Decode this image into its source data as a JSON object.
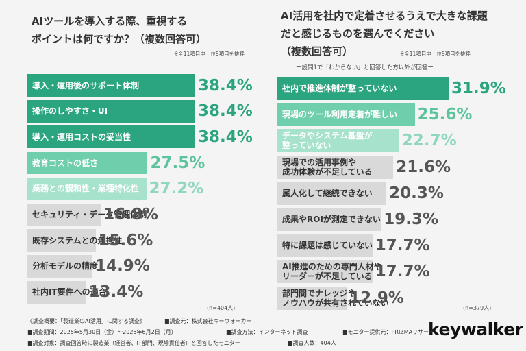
{
  "chart_data": [
    {
      "type": "bar",
      "orientation": "horizontal",
      "title": "AIツールを導入する際、重視する\nポイントは何ですか？（複数回答可）",
      "note": "※全11項目中上位9項目を抜粋",
      "sample": "(n=404人)",
      "categories": [
        "導入・運用後のサポート体制",
        "操作のしやすさ・UI",
        "導入・運用コストの妥当性",
        "教育コストの低さ",
        "業務との親和性・業種特化性",
        "セキュリティ・データ管理体制",
        "既存システムとの連携性",
        "分析モデルの精度",
        "社内IT要件への適合"
      ],
      "values": [
        38.4,
        38.4,
        38.4,
        27.5,
        27.2,
        16.8,
        15.6,
        14.9,
        13.4
      ],
      "value_labels": [
        "38.4%",
        "38.4%",
        "38.4%",
        "27.5%",
        "27.2%",
        "16.8%",
        "15.6%",
        "14.9%",
        "13.4%"
      ],
      "colors": [
        "#2ba57f",
        "#2ba57f",
        "#2ba57f",
        "#6fcfac",
        "#a6e2cc",
        "#d9d9d9",
        "#d9d9d9",
        "#d9d9d9",
        "#d9d9d9"
      ],
      "value_label_colors": [
        "#2ba57f",
        "#2ba57f",
        "#2ba57f",
        "#5cc39c",
        "#8fd8bd",
        "#555555",
        "#555555",
        "#555555",
        "#555555"
      ]
    },
    {
      "type": "bar",
      "orientation": "horizontal",
      "title": "AI活用を社内で定着させるうえで大きな課題\nだと感じるものを選んでください\n（複数回答可）",
      "note": "※全11項目中上位9項目を抜粋",
      "subtitle": "ー設問1で「わからない」と回答した方以外が回答ー",
      "sample": "(n=379人)",
      "categories": [
        "社内で推進体制が整っていない",
        "現場のツール利用定着が難しい",
        "データやシステム基盤が\n整っていない",
        "現場での活用事例や\n成功体験が不足している",
        "属人化して継続できない",
        "成果やROIが測定できない",
        "特に課題は感じていない",
        "AI推進のための専門人材や\nリーダーが不足している",
        "部門間でナレッジや\nノウハウが共有されていない"
      ],
      "values": [
        31.9,
        25.6,
        22.7,
        21.6,
        20.3,
        19.3,
        17.7,
        17.7,
        12.9
      ],
      "value_labels": [
        "31.9%",
        "25.6%",
        "22.7%",
        "21.6%",
        "20.3%",
        "19.3%",
        "17.7%",
        "17.7%",
        "12.9%"
      ],
      "colors": [
        "#2ba57f",
        "#6fcfac",
        "#a6e2cc",
        "#d9d9d9",
        "#d9d9d9",
        "#d9d9d9",
        "#d9d9d9",
        "#d9d9d9",
        "#d9d9d9"
      ],
      "value_label_colors": [
        "#2ba57f",
        "#5cc39c",
        "#8fd8bd",
        "#555555",
        "#555555",
        "#555555",
        "#555555",
        "#555555",
        "#555555"
      ]
    }
  ],
  "footer": {
    "lines": [
      [
        "《調査概要：「製造業のAI活用」に関する調査》",
        "■調査元：株式会社キーウォーカー"
      ],
      [
        "■調査期間：2025年5月30日（金）〜2025年6月2日（月）",
        "■調査方法：インターネット調査",
        "■モニター提供元：PRIZMAリサーチ"
      ],
      [
        "■調査対象：調査回答時に製造業（経営者、IT部門、現場責任者）と回答したモニター",
        "■調査人数：404人"
      ]
    ],
    "logo": "keywalker"
  }
}
